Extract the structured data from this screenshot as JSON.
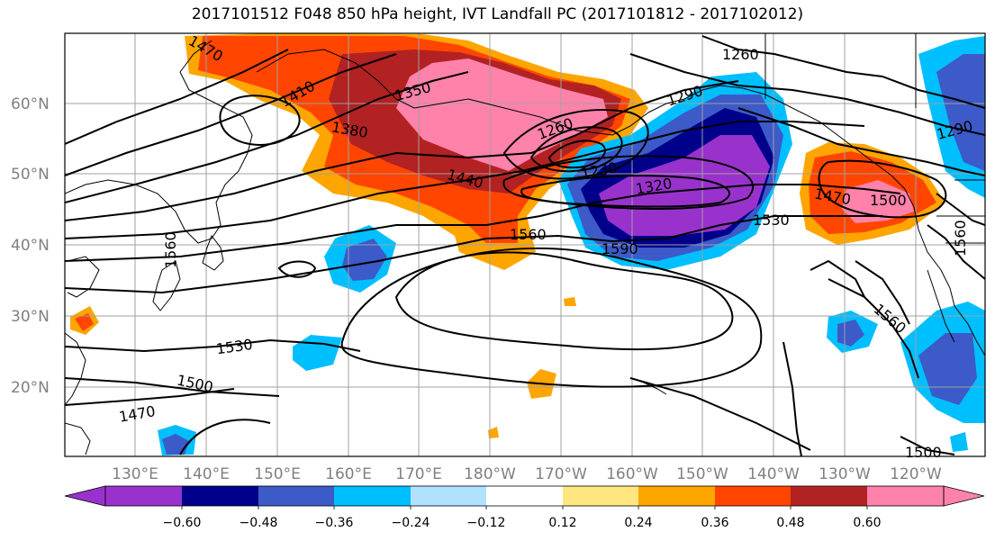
{
  "title": "2017101512 F048 850 hPa height, IVT Landfall PC (2017101812 - 2017102012)",
  "lat_labels": [
    "60°N",
    "50°N",
    "40°N",
    "30°N",
    "20°N"
  ],
  "lon_labels": [
    "130°E",
    "140°E",
    "150°E",
    "160°E",
    "170°E",
    "180°W",
    "170°W",
    "160°W",
    "150°W",
    "140°W",
    "130°W",
    "120°W"
  ],
  "contour_labels": [
    "1470",
    "1410",
    "1350",
    "1380",
    "1260",
    "1290",
    "1260",
    "1290",
    "1440",
    "1230",
    "1320",
    "1470",
    "1500",
    "1530",
    "1560",
    "1590",
    "1560",
    "1560",
    "1560",
    "1530",
    "1500",
    "1470",
    "1500"
  ],
  "colorbar": {
    "tick_labels": [
      "−0.60",
      "−0.48",
      "−0.36",
      "−0.24",
      "−0.12",
      "0.12",
      "0.24",
      "0.36",
      "0.48",
      "0.60"
    ],
    "colors": [
      "#9932cc",
      "#00008b",
      "#3c5ac8",
      "#00bfff",
      "#b0e2ff",
      "#ffffff",
      "#ffe680",
      "#ffa500",
      "#ff4500",
      "#b22222",
      "#ff82ab"
    ]
  },
  "colors": {
    "grid": "#a0a0a0",
    "contour": "#000000",
    "coast": "#000000"
  }
}
